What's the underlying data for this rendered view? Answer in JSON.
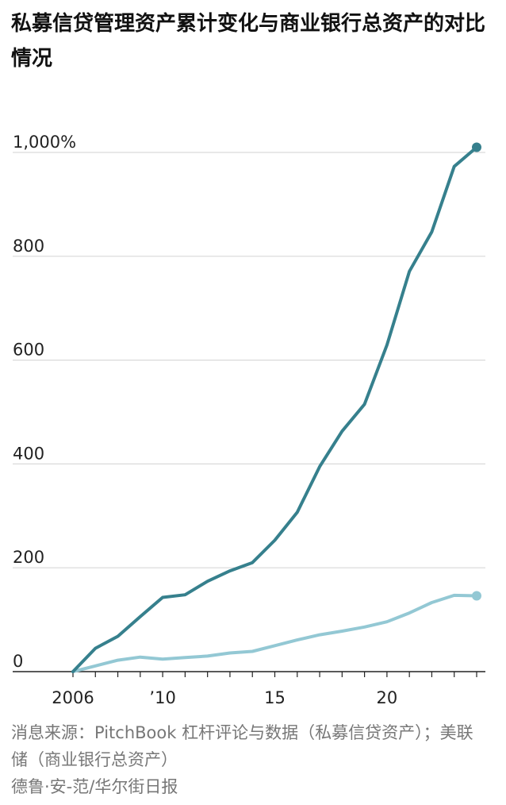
{
  "title": "私募信贷管理资产累计变化与商业银行总资产的对比情况",
  "source": "消息来源：PitchBook 杠杆评论与数据（私募信贷资产）；美联储（商业银行总资产）",
  "credit": "德鲁·安-范/华尔街日报",
  "colors": {
    "private_credit": "#36808d",
    "bank_assets": "#93c8d4",
    "grid": "#d9d9d9",
    "axis": "#222222"
  },
  "chart_data": {
    "type": "line",
    "ylim": [
      0,
      1000
    ],
    "xlim": [
      2006,
      2024
    ],
    "y_ticks": [
      {
        "value": 1000,
        "label": "1,000%"
      },
      {
        "value": 800,
        "label": "800"
      },
      {
        "value": 600,
        "label": "600"
      },
      {
        "value": 400,
        "label": "400"
      },
      {
        "value": 200,
        "label": "200"
      },
      {
        "value": 0,
        "label": "0"
      }
    ],
    "x_ticks": [
      {
        "value": 2006,
        "label": "2006"
      },
      {
        "value": 2010,
        "label": "’10"
      },
      {
        "value": 2015,
        "label": "15"
      },
      {
        "value": 2020,
        "label": "20"
      }
    ],
    "x": [
      2006,
      2007,
      2008,
      2009,
      2010,
      2011,
      2012,
      2013,
      2014,
      2015,
      2016,
      2017,
      2018,
      2019,
      2020,
      2021,
      2022,
      2023,
      2024
    ],
    "series": [
      {
        "key": "private_credit",
        "color": "#36808d",
        "values": [
          0,
          45,
          68,
          106,
          143,
          148,
          174,
          194,
          210,
          253,
          307,
          395,
          463,
          515,
          629,
          771,
          847,
          973,
          1010
        ]
      },
      {
        "key": "bank_assets",
        "color": "#93c8d4",
        "values": [
          0,
          11,
          22,
          28,
          24,
          27,
          30,
          36,
          39,
          50,
          61,
          71,
          78,
          86,
          96,
          113,
          133,
          147,
          146
        ]
      }
    ]
  }
}
